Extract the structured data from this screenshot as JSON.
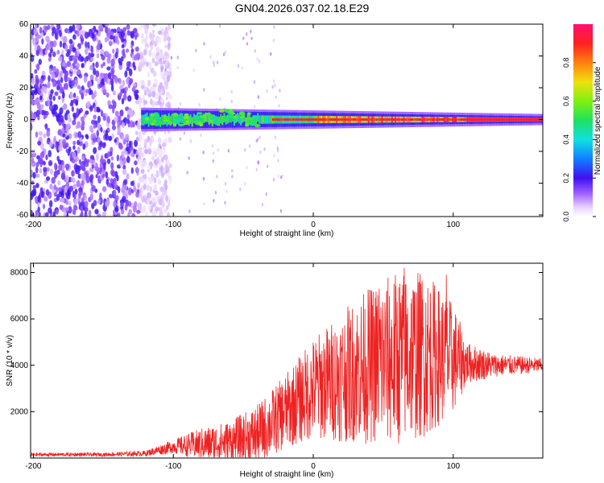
{
  "figure_title": "GN04.2026.037.02.18.E29",
  "colors": {
    "snr_line": "#ee2222",
    "axis": "#000000",
    "background": "#ffffff",
    "colormap": [
      "#f0e6ff",
      "#c9a6f5",
      "#8a3df0",
      "#5a1fe6",
      "#1010ff",
      "#10b0ff",
      "#10f0c0",
      "#30f030",
      "#ccf010",
      "#ffd010",
      "#ff6010",
      "#ff2020",
      "#ff1060"
    ]
  },
  "chart_data": [
    {
      "type": "heatmap",
      "title": "",
      "xlabel": "Height of straight line (km)",
      "ylabel": "Frequency (Hz)",
      "xlim": [
        -202,
        164
      ],
      "ylim": [
        -61,
        60
      ],
      "xticks": [
        -200,
        -100,
        0,
        100
      ],
      "xtick_labels": [
        "-200",
        "-100",
        "0",
        "100"
      ],
      "yticks": [
        60,
        40,
        20,
        0,
        -20,
        -40,
        -60
      ],
      "ytick_labels": [
        "60",
        "40",
        "20",
        "0",
        "-20",
        "-40",
        "-60"
      ],
      "colorbar": {
        "label": "Normalized spectral amplitude",
        "range": [
          0,
          1
        ],
        "ticks": [
          0.0,
          0.2,
          0.4,
          0.6,
          0.8
        ],
        "tick_labels": [
          "0.0",
          "0.2",
          "0.4",
          "0.6",
          "0.8"
        ]
      },
      "features": {
        "noise_region_x": [
          -202,
          -110
        ],
        "signal_start_x": -123,
        "signal_center_hz": 0,
        "signal_halfwidth_hz_at_start": 6,
        "signal_halfwidth_hz_at_end": 2,
        "peak_amplitude": 1.0
      }
    },
    {
      "type": "line",
      "title": "",
      "xlabel": "Height of straight line (km)",
      "ylabel": "SNR (10 * v/v)",
      "xlim": [
        -202,
        164
      ],
      "ylim": [
        0,
        8400
      ],
      "xticks": [
        -200,
        -100,
        0,
        100
      ],
      "xtick_labels": [
        "-200",
        "-100",
        "0",
        "100"
      ],
      "yticks": [
        2000,
        4000,
        6000,
        8000
      ],
      "ytick_labels": [
        "2000",
        "4000",
        "6000",
        "8000"
      ],
      "series": [
        {
          "name": "SNR",
          "envelope_x": [
            -202,
            -150,
            -120,
            -100,
            -80,
            -60,
            -40,
            -20,
            0,
            20,
            40,
            60,
            80,
            100,
            110,
            130,
            164
          ],
          "envelope_mean": [
            150,
            150,
            200,
            500,
            600,
            700,
            1000,
            2000,
            3000,
            3500,
            4000,
            4300,
            4500,
            4300,
            4100,
            4000,
            4000
          ],
          "envelope_amp": [
            80,
            80,
            120,
            300,
            700,
            900,
            1300,
            1600,
            2200,
            2800,
            3400,
            3800,
            3600,
            2400,
            900,
            500,
            300
          ],
          "notable_peaks": [
            {
              "x": 47,
              "y": 7300
            },
            {
              "x": 65,
              "y": 8200
            },
            {
              "x": 95,
              "y": 7900
            }
          ]
        }
      ]
    }
  ]
}
